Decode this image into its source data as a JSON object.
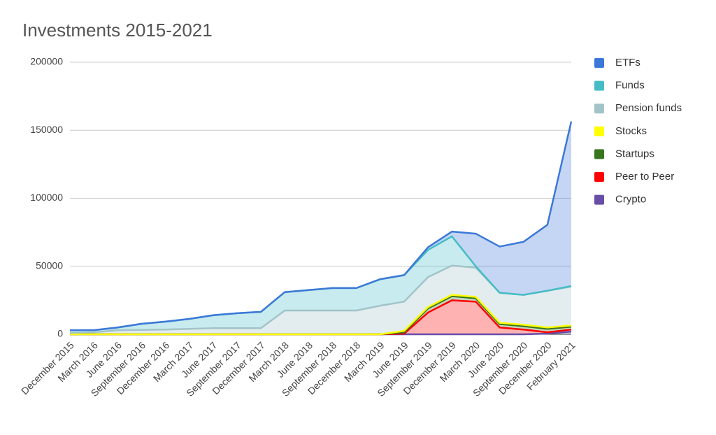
{
  "chart_data": {
    "type": "stacked_area",
    "title": "Investments 2015-2021",
    "categories": [
      "December 2015",
      "March 2016",
      "June 2016",
      "September 2016",
      "December 2016",
      "March 2017",
      "June 2017",
      "September 2017",
      "December 2017",
      "March 2018",
      "June 2018",
      "September 2018",
      "December 2018",
      "March 2019",
      "June 2019",
      "September 2019",
      "December 2019",
      "March 2020",
      "June 2020",
      "September 2020",
      "December 2020",
      "February 2021"
    ],
    "series": [
      {
        "name": "ETFs",
        "color": "#3c78d8",
        "values": [
          0,
          0,
          0,
          0,
          0,
          0,
          0,
          0,
          0,
          0,
          0,
          0,
          0,
          0,
          0,
          2000,
          3500,
          24000,
          34000,
          39000,
          48500,
          121000
        ]
      },
      {
        "name": "Funds",
        "color": "#46bdc6",
        "values": [
          2000,
          1500,
          2000,
          4500,
          5800,
          7300,
          9500,
          11000,
          12000,
          13500,
          15000,
          16500,
          16500,
          19500,
          19500,
          20000,
          21500,
          1000,
          0,
          0,
          0,
          500
        ]
      },
      {
        "name": "Pension funds",
        "color": "#a2c4c9",
        "values": [
          1000,
          1500,
          3000,
          3200,
          3500,
          4000,
          4500,
          4500,
          4500,
          17500,
          17500,
          17500,
          17500,
          21000,
          21500,
          22000,
          21500,
          21500,
          22000,
          22000,
          27000,
          28500
        ]
      },
      {
        "name": "Stocks",
        "color": "#ffff00",
        "values": [
          0,
          0,
          0,
          0,
          0,
          0,
          0,
          0,
          0,
          0,
          0,
          0,
          0,
          0,
          1000,
          1000,
          1000,
          1000,
          1000,
          1000,
          1000,
          1000
        ]
      },
      {
        "name": "Startups",
        "color": "#38761d",
        "values": [
          0,
          0,
          0,
          0,
          0,
          0,
          0,
          0,
          0,
          0,
          0,
          0,
          0,
          0,
          1000,
          3000,
          3000,
          2500,
          2500,
          2500,
          2500,
          2000
        ]
      },
      {
        "name": "Peer to Peer",
        "color": "#ff0000",
        "values": [
          0,
          0,
          0,
          0,
          0,
          0,
          0,
          0,
          0,
          0,
          0,
          0,
          0,
          0,
          500,
          16000,
          25000,
          24000,
          5000,
          3500,
          1000,
          1500
        ]
      },
      {
        "name": "Crypto",
        "color": "#674ea7",
        "values": [
          0,
          0,
          0,
          0,
          0,
          0,
          0,
          0,
          0,
          0,
          0,
          0,
          0,
          0,
          0,
          0,
          0,
          0,
          0,
          0,
          500,
          2000
        ]
      }
    ],
    "ylim": [
      0,
      200000
    ],
    "yticks": [
      0,
      50000,
      100000,
      150000,
      200000
    ],
    "grid": true,
    "legend": "right"
  }
}
